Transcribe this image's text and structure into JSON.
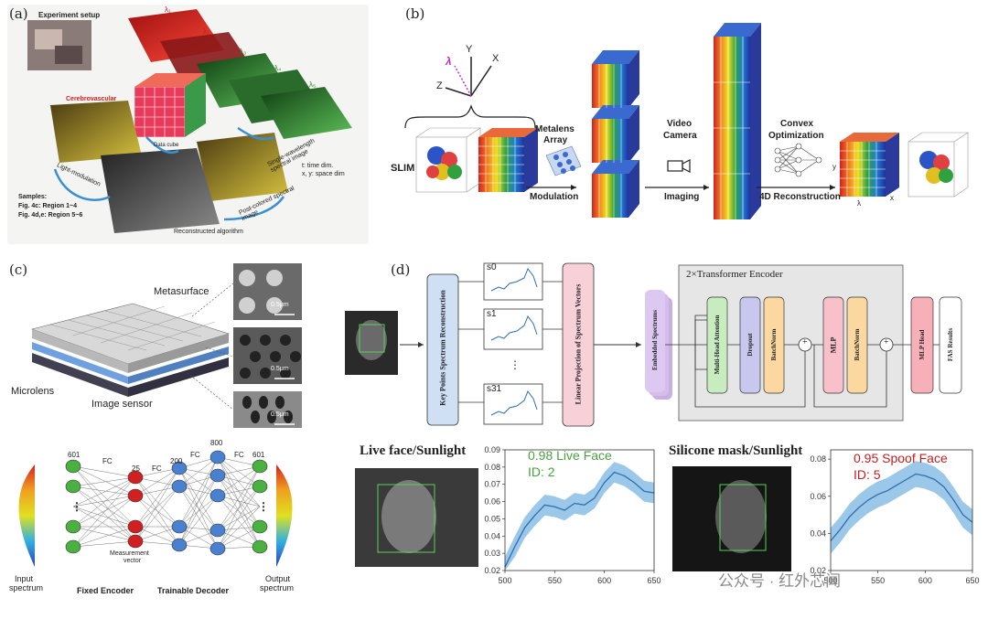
{
  "panels": {
    "a": {
      "label": "(a)",
      "experiment_setup": "Experiment setup",
      "cerebrovascular": "Cerebrovascular",
      "lambda1": "λ₁",
      "lambda2": "λ₂",
      "lambda3": "λ₃",
      "lambda4": "λ₄",
      "lambda5": "λ₅",
      "single_wavelength": "Single-wavelength spectral image",
      "light_modulation": "Light-modulation",
      "data_cube": "Data cube",
      "post_colored": "Post-colored spectral image",
      "reconstructed": "Reconstructed algorithm",
      "time_dim": "t: time dim.",
      "space_dim": "x, y: space dim",
      "samples": "Samples:",
      "fig4c": "Fig. 4c: Region 1~4",
      "fig4de": "Fig. 4d,e: Region 5~6"
    },
    "b": {
      "label": "(b)",
      "axis_lambda": "λ",
      "axis_y": "Y",
      "axis_x": "X",
      "axis_z": "Z",
      "slim": "SLIM",
      "metalens": "Metalens",
      "array": "Array",
      "modulation": "Modulation",
      "video": "Video",
      "camera": "Camera",
      "imaging": "Imaging",
      "convex": "Convex",
      "optimization": "Optimization",
      "reconstruction": "4D Reconstruction",
      "lam": "λ",
      "x": "x",
      "y": "y"
    },
    "c": {
      "label": "(c)",
      "metasurface": "Metasurface",
      "microlens": "Microlens",
      "image_sensor": "Image sensor",
      "scale1": "0.5μm",
      "scale2": "0.5μm",
      "scale3": "0.5μm",
      "n601a": "601",
      "n25": "25",
      "n200": "200",
      "n800": "800",
      "n601b": "601",
      "fc": "FC",
      "input_spectrum_1": "Input",
      "input_spectrum_2": "spectrum",
      "output_spectrum_1": "Output",
      "output_spectrum_2": "spectrum",
      "measurement_1": "Measurement",
      "measurement_2": "vector",
      "fixed_encoder": "Fixed Encoder",
      "trainable_decoder": "Trainable Decoder"
    },
    "d": {
      "label": "(d)",
      "key_points": "Key Points Spectrum Reconstruction",
      "s0": "s0",
      "s1": "s1",
      "s31": "s31",
      "dots": "⋮",
      "linear_projection": "Linear Projection of Spectrum Vectors",
      "embedded": "Embedded Spectrums",
      "transformer": "2×Transformer Encoder",
      "mha": "Multi-Head Attention",
      "dropout": "Dropout",
      "batchnorm": "BatchNorm",
      "mlp": "MLP",
      "batchnorm2": "BatchNorm",
      "mlp_head": "MLP Head",
      "fas": "FAS Results",
      "plus": "+",
      "live_title": "Live face/Sunlight",
      "mask_title": "Silicone mask/Sunlight",
      "live_result_1": "0.98 Live Face",
      "live_result_2": "ID: 2",
      "spoof_result_1": "0.95 Spoof Face",
      "spoof_result_2": "ID: 5",
      "watermark": "公众号 · 红外芯闻"
    }
  },
  "chart_data": [
    {
      "type": "line",
      "x": [
        500,
        510,
        520,
        530,
        540,
        550,
        560,
        570,
        580,
        590,
        600,
        610,
        620,
        630,
        640,
        650
      ],
      "series": [
        {
          "values": [
            0.022,
            0.034,
            0.045,
            0.052,
            0.058,
            0.057,
            0.055,
            0.059,
            0.058,
            0.062,
            0.071,
            0.077,
            0.075,
            0.071,
            0.066,
            0.065
          ]
        }
      ],
      "xlim": [
        500,
        650
      ],
      "ylim": [
        0.02,
        0.09
      ],
      "xticks": [
        500,
        550,
        600,
        650
      ],
      "yticks": [
        0.02,
        0.03,
        0.04,
        0.05,
        0.06,
        0.07,
        0.08,
        0.09
      ],
      "ytick_labels": [
        "0.02",
        "0.03",
        "0.04",
        "0.05",
        "0.06",
        "0.07",
        "0.08",
        "0.09"
      ],
      "xtick_labels": [
        "500",
        "550",
        "600",
        "650"
      ],
      "band_width": 0.006,
      "color": "#2f6fb0"
    },
    {
      "type": "line",
      "x": [
        500,
        510,
        520,
        530,
        540,
        550,
        560,
        570,
        580,
        590,
        600,
        610,
        620,
        630,
        640,
        650
      ],
      "series": [
        {
          "values": [
            0.036,
            0.042,
            0.049,
            0.054,
            0.058,
            0.061,
            0.063,
            0.066,
            0.069,
            0.072,
            0.071,
            0.069,
            0.065,
            0.058,
            0.05,
            0.046
          ]
        }
      ],
      "xlim": [
        500,
        650
      ],
      "ylim": [
        0.02,
        0.085
      ],
      "xticks": [
        500,
        550,
        600,
        650
      ],
      "yticks": [
        0.02,
        0.04,
        0.06,
        0.08
      ],
      "ytick_labels": [
        "0.02",
        "0.04",
        "0.06",
        "0.08"
      ],
      "xtick_labels": [
        "500",
        "550",
        "600",
        "650"
      ],
      "band_width": 0.007,
      "color": "#2f6fb0"
    }
  ]
}
